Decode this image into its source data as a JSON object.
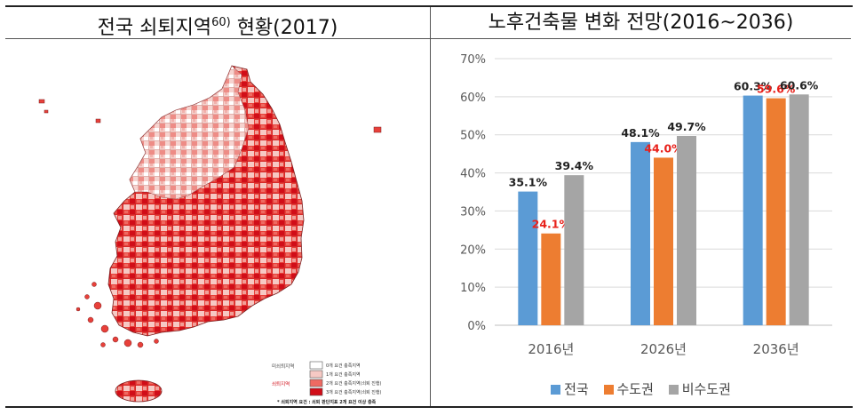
{
  "left_panel": {
    "title_main": "전국 쇠퇴지역",
    "title_sup": "60)",
    "title_tail": " 현황(2017)",
    "map_legend": {
      "group_label_1": "미쇠퇴지역",
      "group_label_2": "쇠퇴지역",
      "items": [
        {
          "label": "0개 요건 충족지역",
          "color": "#ffffff"
        },
        {
          "label": "1개 요건 충족지역",
          "color": "#f6c9c4"
        },
        {
          "label": "2개 요건 충족지역(쇠퇴 진행)",
          "color": "#ee6a62"
        },
        {
          "label": "3개 요건 충족지역(쇠퇴 진행)",
          "color": "#d10d18"
        }
      ],
      "footnote": "* 쇠퇴지역 요건 : 쇠퇴 판단지표 2개 요건 이상 충족"
    },
    "colors": {
      "light": "#f6c9c4",
      "mid": "#ee6a62",
      "dark": "#d10d18"
    }
  },
  "right_panel": {
    "title": "노후건축물 변화 전망(2016~2036)"
  },
  "chart_data": {
    "type": "bar",
    "title": "노후건축물 변화 전망(2016~2036)",
    "categories": [
      "2016년",
      "2026년",
      "2036년"
    ],
    "series": [
      {
        "name": "전국",
        "values": [
          35.1,
          48.1,
          60.3
        ],
        "color": "#5b9bd5",
        "label_color": "#222222"
      },
      {
        "name": "수도권",
        "values": [
          24.1,
          44.0,
          59.6
        ],
        "color": "#ed7d31",
        "label_color": "#e8211b"
      },
      {
        "name": "비수도권",
        "values": [
          39.4,
          49.7,
          60.6
        ],
        "color": "#a5a5a5",
        "label_color": "#222222"
      }
    ],
    "ylim": [
      0,
      70
    ],
    "yticks": [
      "0%",
      "10%",
      "20%",
      "30%",
      "40%",
      "50%",
      "60%",
      "70%"
    ],
    "value_suffix": "%",
    "grid": true,
    "legend_position": "bottom"
  }
}
